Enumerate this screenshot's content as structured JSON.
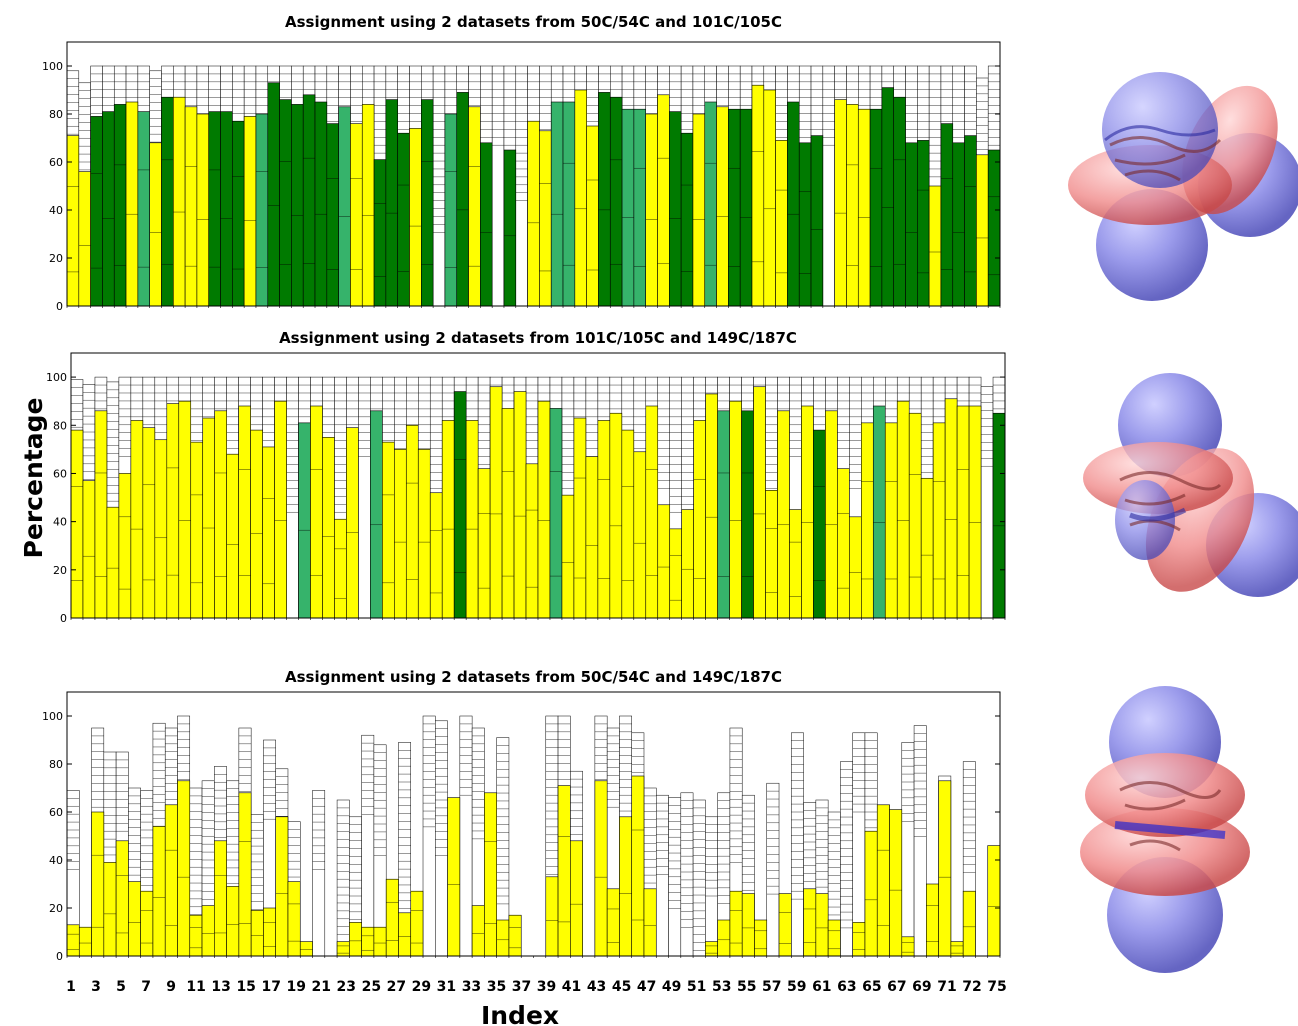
{
  "colors": {
    "yellow": "#ffff00",
    "dark_green": "#007a00",
    "medium_green": "#36b36b",
    "grid": "#000000"
  },
  "labels": {
    "ylabel": "Percentage",
    "xlabel": "Index"
  },
  "x_tick_labels": [
    "1",
    "3",
    "5",
    "7",
    "9",
    "11",
    "13",
    "15",
    "17",
    "19",
    "21",
    "23",
    "25",
    "27",
    "29",
    "31",
    "33",
    "35",
    "37",
    "39",
    "41",
    "43",
    "45",
    "47",
    "49",
    "51",
    "53",
    "55",
    "57",
    "59",
    "61",
    "63",
    "65",
    "67",
    "69",
    "71",
    "72",
    "75"
  ],
  "chart_data": [
    {
      "type": "bar",
      "title": "Assignment using 2 datasets from 50C/54C and 101C/105C",
      "ylim": [
        0,
        110
      ],
      "yticks": [
        0,
        20,
        40,
        60,
        80,
        100
      ],
      "color_key": {
        "Y": "yellow",
        "G": "dark_green",
        "M": "medium_green"
      },
      "values": [
        71,
        56,
        79,
        81,
        84,
        85,
        81,
        68,
        87,
        87,
        83,
        80,
        81,
        81,
        77,
        79,
        80,
        93,
        86,
        84,
        88,
        85,
        76,
        83,
        76,
        84,
        61,
        86,
        72,
        74,
        86,
        0,
        80,
        89,
        83,
        68,
        0,
        65,
        0,
        77,
        73,
        85,
        85,
        90,
        75,
        89,
        87,
        82,
        82,
        80,
        88,
        81,
        72,
        80,
        85,
        83,
        82,
        82,
        92,
        90,
        69,
        85,
        68,
        71,
        0,
        86,
        84,
        82,
        82,
        91,
        87,
        68,
        69,
        50,
        76,
        68,
        71,
        63,
        65
      ],
      "colors": [
        "Y",
        "Y",
        "G",
        "G",
        "G",
        "Y",
        "M",
        "Y",
        "G",
        "Y",
        "Y",
        "Y",
        "G",
        "G",
        "G",
        "Y",
        "M",
        "G",
        "G",
        "G",
        "G",
        "G",
        "G",
        "M",
        "Y",
        "Y",
        "G",
        "G",
        "G",
        "Y",
        "G",
        "Y",
        "M",
        "G",
        "Y",
        "G",
        "Y",
        "G",
        "Y",
        "Y",
        "Y",
        "M",
        "M",
        "Y",
        "Y",
        "G",
        "G",
        "M",
        "M",
        "Y",
        "Y",
        "G",
        "G",
        "Y",
        "M",
        "Y",
        "G",
        "G",
        "Y",
        "Y",
        "Y",
        "G",
        "G",
        "G",
        "Y",
        "Y",
        "Y",
        "Y",
        "G",
        "G",
        "G",
        "G",
        "G",
        "Y",
        "G",
        "G",
        "G",
        "Y",
        "G"
      ],
      "outer": [
        98,
        93,
        100,
        100,
        100,
        100,
        100,
        98,
        100,
        100,
        100,
        100,
        100,
        100,
        100,
        100,
        100,
        100,
        100,
        100,
        100,
        100,
        100,
        100,
        100,
        100,
        100,
        100,
        100,
        100,
        100,
        100,
        100,
        100,
        100,
        100,
        100,
        100,
        100,
        100,
        100,
        100,
        100,
        100,
        100,
        100,
        100,
        100,
        100,
        100,
        100,
        100,
        100,
        100,
        100,
        100,
        100,
        100,
        100,
        100,
        100,
        100,
        100,
        100,
        100,
        100,
        100,
        100,
        100,
        100,
        100,
        100,
        100,
        100,
        100,
        100,
        100,
        95,
        100
      ]
    },
    {
      "type": "bar",
      "title": "Assignment using 2 datasets from 101C/105C and 149C/187C",
      "ylim": [
        0,
        110
      ],
      "yticks": [
        0,
        20,
        40,
        60,
        80,
        100
      ],
      "color_key": {
        "Y": "yellow",
        "G": "dark_green",
        "M": "medium_green"
      },
      "values": [
        78,
        57,
        86,
        46,
        60,
        82,
        79,
        74,
        89,
        90,
        73,
        83,
        86,
        68,
        88,
        78,
        71,
        90,
        0,
        81,
        88,
        75,
        41,
        79,
        0,
        86,
        73,
        70,
        80,
        70,
        52,
        82,
        94,
        82,
        62,
        96,
        87,
        94,
        64,
        90,
        87,
        51,
        83,
        67,
        82,
        85,
        78,
        69,
        88,
        47,
        37,
        45,
        82,
        93,
        86,
        90,
        86,
        96,
        53,
        86,
        45,
        88,
        78,
        86,
        62,
        42,
        81,
        88,
        81,
        90,
        85,
        58,
        81,
        91,
        88,
        88,
        0,
        85
      ],
      "colors": [
        "Y",
        "Y",
        "Y",
        "Y",
        "Y",
        "Y",
        "Y",
        "Y",
        "Y",
        "Y",
        "Y",
        "Y",
        "Y",
        "Y",
        "Y",
        "Y",
        "Y",
        "Y",
        "Y",
        "M",
        "Y",
        "Y",
        "Y",
        "Y",
        "Y",
        "M",
        "Y",
        "Y",
        "Y",
        "Y",
        "Y",
        "Y",
        "G",
        "Y",
        "Y",
        "Y",
        "Y",
        "Y",
        "Y",
        "Y",
        "M",
        "Y",
        "Y",
        "Y",
        "Y",
        "Y",
        "Y",
        "Y",
        "Y",
        "Y",
        "Y",
        "Y",
        "Y",
        "Y",
        "M",
        "Y",
        "G",
        "Y",
        "Y",
        "Y",
        "Y",
        "Y",
        "G",
        "Y",
        "Y",
        "Y",
        "Y",
        "M",
        "Y",
        "Y",
        "Y",
        "Y",
        "Y",
        "Y",
        "Y",
        "Y",
        "Y",
        "G"
      ],
      "outer": [
        99,
        97,
        100,
        98,
        100,
        100,
        100,
        100,
        100,
        100,
        100,
        100,
        100,
        100,
        100,
        100,
        100,
        100,
        100,
        100,
        100,
        100,
        100,
        100,
        100,
        100,
        100,
        100,
        100,
        100,
        100,
        100,
        100,
        100,
        100,
        100,
        100,
        100,
        100,
        100,
        100,
        100,
        100,
        100,
        100,
        100,
        100,
        100,
        100,
        100,
        100,
        100,
        100,
        100,
        100,
        100,
        100,
        100,
        100,
        100,
        100,
        100,
        100,
        100,
        100,
        100,
        100,
        100,
        100,
        100,
        100,
        100,
        100,
        100,
        100,
        100,
        96,
        100
      ]
    },
    {
      "type": "bar",
      "title": "Assignment using 2 datasets from 50C/54C and 149C/187C",
      "ylim": [
        0,
        110
      ],
      "yticks": [
        0,
        20,
        40,
        60,
        80,
        100
      ],
      "color_key": {
        "Y": "yellow"
      },
      "values": [
        13,
        12,
        60,
        39,
        48,
        31,
        27,
        54,
        63,
        73,
        17,
        21,
        48,
        29,
        68,
        19,
        20,
        58,
        31,
        6,
        0,
        0,
        6,
        14,
        12,
        12,
        32,
        18,
        27,
        0,
        0,
        66,
        0,
        21,
        68,
        15,
        17,
        0,
        0,
        33,
        71,
        48,
        0,
        73,
        28,
        58,
        75,
        28,
        0,
        0,
        0,
        0,
        6,
        15,
        27,
        26,
        15,
        0,
        26,
        0,
        28,
        26,
        15,
        0,
        14,
        52,
        63,
        61,
        8,
        0,
        30,
        73,
        6,
        27,
        0,
        46
      ],
      "colors": [
        "Y",
        "Y",
        "Y",
        "Y",
        "Y",
        "Y",
        "Y",
        "Y",
        "Y",
        "Y",
        "Y",
        "Y",
        "Y",
        "Y",
        "Y",
        "Y",
        "Y",
        "Y",
        "Y",
        "Y",
        "Y",
        "Y",
        "Y",
        "Y",
        "Y",
        "Y",
        "Y",
        "Y",
        "Y",
        "Y",
        "Y",
        "Y",
        "Y",
        "Y",
        "Y",
        "Y",
        "Y",
        "Y",
        "Y",
        "Y",
        "Y",
        "Y",
        "Y",
        "Y",
        "Y",
        "Y",
        "Y",
        "Y",
        "Y",
        "Y",
        "Y",
        "Y",
        "Y",
        "Y",
        "Y",
        "Y",
        "Y",
        "Y",
        "Y",
        "Y",
        "Y",
        "Y",
        "Y",
        "Y",
        "Y",
        "Y",
        "Y",
        "Y",
        "Y",
        "Y",
        "Y",
        "Y",
        "Y",
        "Y",
        "Y",
        "Y"
      ],
      "outer": [
        69,
        0,
        95,
        85,
        85,
        70,
        69,
        97,
        95,
        100,
        70,
        73,
        79,
        73,
        95,
        59,
        90,
        78,
        56,
        0,
        69,
        0,
        65,
        58,
        92,
        88,
        0,
        89,
        0,
        100,
        98,
        0,
        100,
        95,
        0,
        91,
        0,
        0,
        0,
        100,
        100,
        77,
        0,
        100,
        95,
        100,
        93,
        70,
        67,
        66,
        68,
        65,
        58,
        68,
        95,
        67,
        0,
        72,
        0,
        93,
        64,
        65,
        60,
        81,
        93,
        93,
        63,
        0,
        89,
        96,
        0,
        75,
        0,
        81,
        0,
        0
      ]
    }
  ]
}
